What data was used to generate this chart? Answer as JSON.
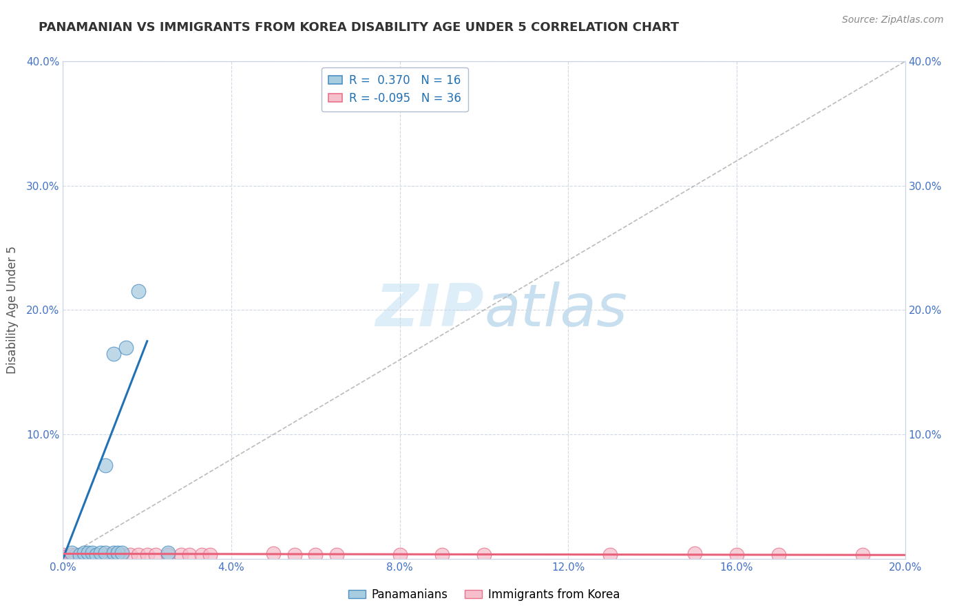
{
  "title": "PANAMANIAN VS IMMIGRANTS FROM KOREA DISABILITY AGE UNDER 5 CORRELATION CHART",
  "source": "Source: ZipAtlas.com",
  "ylabel": "Disability Age Under 5",
  "xlim": [
    0.0,
    0.2
  ],
  "ylim": [
    0.0,
    0.4
  ],
  "xticks": [
    0.0,
    0.04,
    0.08,
    0.12,
    0.16,
    0.2
  ],
  "yticks": [
    0.0,
    0.1,
    0.2,
    0.3,
    0.4
  ],
  "xtick_labels": [
    "0.0%",
    "4.0%",
    "8.0%",
    "12.0%",
    "16.0%",
    "20.0%"
  ],
  "ytick_labels": [
    "",
    "10.0%",
    "20.0%",
    "30.0%",
    "40.0%"
  ],
  "right_ytick_labels": [
    "",
    "10.0%",
    "20.0%",
    "30.0%",
    "40.0%"
  ],
  "blue_R": 0.37,
  "blue_N": 16,
  "pink_R": -0.095,
  "pink_N": 36,
  "blue_color": "#a8cce0",
  "pink_color": "#f5bfcc",
  "blue_edge_color": "#4a90c4",
  "pink_edge_color": "#e8728a",
  "blue_line_color": "#2171b5",
  "pink_line_color": "#e8607a",
  "diag_line_color": "#aaaaaa",
  "background_color": "#ffffff",
  "grid_color": "#d0d8e8",
  "watermark_color": "#ddeef8",
  "blue_x": [
    0.002,
    0.004,
    0.005,
    0.006,
    0.007,
    0.008,
    0.009,
    0.01,
    0.01,
    0.012,
    0.012,
    0.013,
    0.014,
    0.015,
    0.018,
    0.025
  ],
  "blue_y": [
    0.005,
    0.003,
    0.005,
    0.005,
    0.005,
    0.003,
    0.005,
    0.005,
    0.075,
    0.165,
    0.005,
    0.005,
    0.005,
    0.17,
    0.215,
    0.005
  ],
  "pink_x": [
    0.0,
    0.001,
    0.002,
    0.003,
    0.004,
    0.005,
    0.006,
    0.007,
    0.008,
    0.009,
    0.01,
    0.011,
    0.012,
    0.013,
    0.014,
    0.016,
    0.018,
    0.02,
    0.022,
    0.025,
    0.028,
    0.03,
    0.033,
    0.035,
    0.05,
    0.055,
    0.06,
    0.065,
    0.08,
    0.09,
    0.1,
    0.13,
    0.15,
    0.16,
    0.17,
    0.19
  ],
  "pink_y": [
    0.003,
    0.002,
    0.003,
    0.003,
    0.002,
    0.003,
    0.003,
    0.002,
    0.003,
    0.002,
    0.003,
    0.003,
    0.003,
    0.003,
    0.003,
    0.003,
    0.003,
    0.003,
    0.003,
    0.003,
    0.003,
    0.003,
    0.003,
    0.003,
    0.004,
    0.003,
    0.003,
    0.003,
    0.003,
    0.003,
    0.003,
    0.003,
    0.004,
    0.003,
    0.003,
    0.003
  ],
  "blue_line_x0": 0.0,
  "blue_line_y0": 0.0,
  "blue_line_x1": 0.02,
  "blue_line_y1": 0.175,
  "pink_line_x0": 0.0,
  "pink_line_y0": 0.004,
  "pink_line_x1": 0.2,
  "pink_line_y1": 0.003
}
